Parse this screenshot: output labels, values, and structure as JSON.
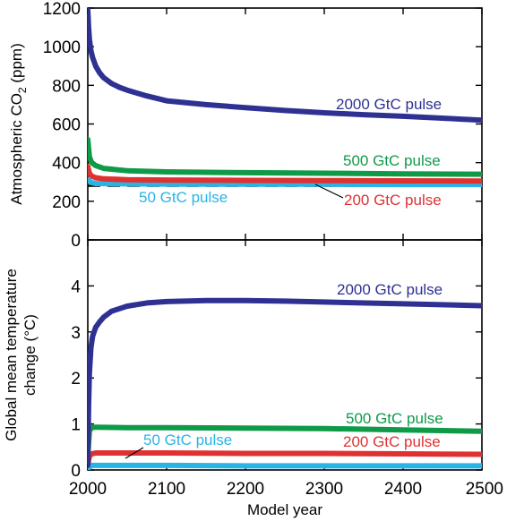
{
  "chart_data": [
    {
      "type": "line",
      "panel": "top",
      "title": "",
      "xlabel": "",
      "ylabel": "Atmospheric CO2 (ppm)",
      "ylabel_parts": {
        "main": "Atmospheric CO",
        "sub": "2",
        "tail": " (ppm)"
      },
      "xlim": [
        2000,
        2500
      ],
      "ylim": [
        0,
        1200
      ],
      "yticks": [
        0,
        200,
        400,
        600,
        800,
        1000,
        1200
      ],
      "xticks": [
        2000,
        2100,
        2200,
        2300,
        2400,
        2500
      ],
      "grid": false,
      "reference_line": {
        "y": 280,
        "style": "dashed",
        "color": "#000000"
      },
      "series": [
        {
          "name": "2000 GtC pulse",
          "color": "#2e3192",
          "x": [
            2000,
            2001,
            2002,
            2004,
            2006,
            2010,
            2015,
            2020,
            2030,
            2040,
            2050,
            2075,
            2100,
            2150,
            2200,
            2250,
            2300,
            2350,
            2400,
            2450,
            2500
          ],
          "y": [
            1190,
            1100,
            1040,
            980,
            945,
            900,
            865,
            840,
            810,
            790,
            775,
            745,
            720,
            700,
            685,
            670,
            658,
            648,
            640,
            630,
            620
          ]
        },
        {
          "name": "500 GtC pulse",
          "color": "#0f9a48",
          "x": [
            2000,
            2002,
            2005,
            2010,
            2020,
            2050,
            2100,
            2200,
            2300,
            2400,
            2500
          ],
          "y": [
            520,
            430,
            400,
            385,
            370,
            358,
            352,
            348,
            345,
            342,
            340
          ]
        },
        {
          "name": "200 GtC pulse",
          "color": "#e03131",
          "x": [
            2000,
            2002,
            2005,
            2010,
            2020,
            2050,
            2100,
            2200,
            2300,
            2400,
            2500
          ],
          "y": [
            380,
            345,
            330,
            322,
            316,
            312,
            310,
            308,
            307,
            306,
            305
          ]
        },
        {
          "name": "50 GtC pulse",
          "color": "#2ab4e6",
          "x": [
            2000,
            2005,
            2010,
            2050,
            2100,
            2200,
            2300,
            2400,
            2500
          ],
          "y": [
            310,
            296,
            292,
            290,
            289,
            288,
            288,
            287,
            287
          ]
        }
      ]
    },
    {
      "type": "line",
      "panel": "bottom",
      "title": "",
      "xlabel": "Model year",
      "ylabel": "Global mean temperature change (°C)",
      "ylabel_lines": [
        "Global mean temperature",
        "change (°C)"
      ],
      "xlim": [
        2000,
        2500
      ],
      "ylim": [
        0,
        5
      ],
      "yticks": [
        0,
        1,
        2,
        3,
        4
      ],
      "xticks": [
        2000,
        2100,
        2200,
        2300,
        2400,
        2500
      ],
      "grid": false,
      "series": [
        {
          "name": "2000 GtC pulse",
          "color": "#2e3192",
          "x": [
            2000,
            2001,
            2002,
            2004,
            2006,
            2010,
            2015,
            2020,
            2030,
            2050,
            2075,
            2100,
            2150,
            2200,
            2250,
            2300,
            2400,
            2500
          ],
          "y": [
            0.1,
            1.4,
            2.1,
            2.65,
            2.9,
            3.1,
            3.22,
            3.32,
            3.45,
            3.56,
            3.63,
            3.66,
            3.68,
            3.68,
            3.67,
            3.65,
            3.61,
            3.57
          ]
        },
        {
          "name": "500 GtC pulse",
          "color": "#0f9a48",
          "x": [
            2000,
            2002,
            2005,
            2010,
            2050,
            2100,
            2200,
            2300,
            2400,
            2500
          ],
          "y": [
            0.3,
            0.85,
            0.92,
            0.93,
            0.92,
            0.92,
            0.91,
            0.9,
            0.87,
            0.84
          ]
        },
        {
          "name": "200 GtC pulse",
          "color": "#e03131",
          "x": [
            2000,
            2002,
            2005,
            2010,
            2050,
            2100,
            2200,
            2300,
            2400,
            2500
          ],
          "y": [
            0.1,
            0.3,
            0.35,
            0.37,
            0.37,
            0.37,
            0.36,
            0.36,
            0.35,
            0.34
          ]
        },
        {
          "name": "50 GtC pulse",
          "color": "#2ab4e6",
          "x": [
            2000,
            2005,
            2010,
            2050,
            2100,
            2200,
            2300,
            2400,
            2500
          ],
          "y": [
            0.03,
            0.1,
            0.1,
            0.1,
            0.1,
            0.09,
            0.09,
            0.09,
            0.09
          ]
        }
      ]
    }
  ]
}
